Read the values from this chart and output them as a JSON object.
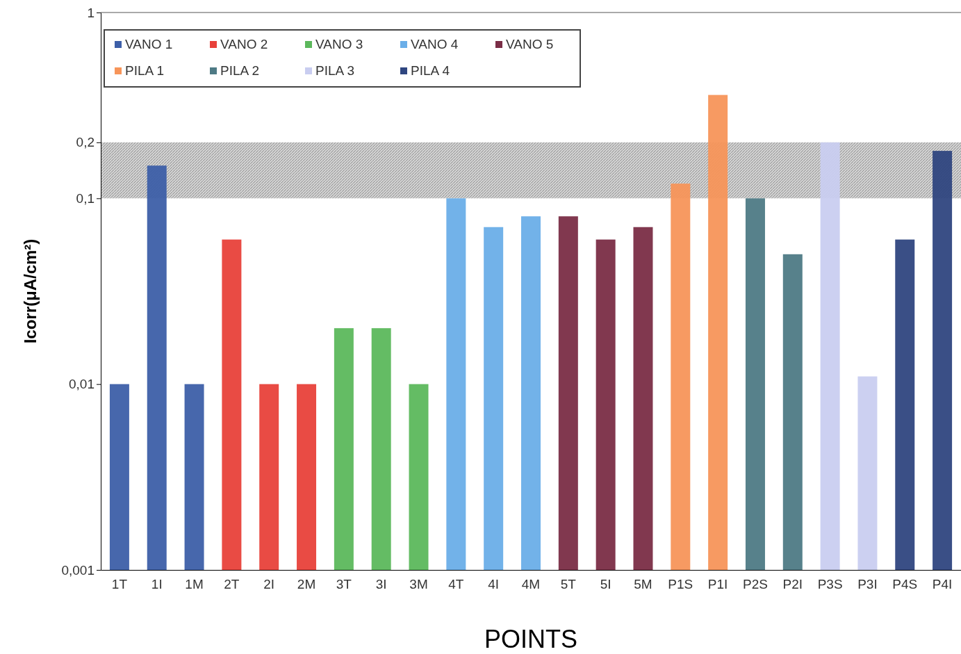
{
  "chart_data": {
    "type": "bar",
    "xlabel": "POINTS",
    "ylabel": "Icorr(μA/cm²)",
    "categories": [
      "1T",
      "1I",
      "1M",
      "2T",
      "2I",
      "2M",
      "3T",
      "3I",
      "3M",
      "4T",
      "4I",
      "4M",
      "5T",
      "5I",
      "5M",
      "P1S",
      "P1I",
      "P2S",
      "P2I",
      "P3S",
      "P3I",
      "P4S",
      "P4I"
    ],
    "series": [
      {
        "name": "VANO 1",
        "color": "#3d5fa8",
        "values": [
          0.01,
          0.15,
          0.01,
          null,
          null,
          null,
          null,
          null,
          null,
          null,
          null,
          null,
          null,
          null,
          null,
          null,
          null,
          null,
          null,
          null,
          null,
          null,
          null
        ]
      },
      {
        "name": "VANO 2",
        "color": "#e8413a",
        "values": [
          null,
          null,
          null,
          0.06,
          0.01,
          0.01,
          null,
          null,
          null,
          null,
          null,
          null,
          null,
          null,
          null,
          null,
          null,
          null,
          null,
          null,
          null,
          null,
          null
        ]
      },
      {
        "name": "VANO 3",
        "color": "#5cb85c",
        "values": [
          null,
          null,
          null,
          null,
          null,
          null,
          0.02,
          0.02,
          0.01,
          null,
          null,
          null,
          null,
          null,
          null,
          null,
          null,
          null,
          null,
          null,
          null,
          null,
          null
        ]
      },
      {
        "name": "VANO 4",
        "color": "#6aaee8",
        "values": [
          null,
          null,
          null,
          null,
          null,
          null,
          null,
          null,
          null,
          0.1,
          0.07,
          0.08,
          null,
          null,
          null,
          null,
          null,
          null,
          null,
          null,
          null,
          null,
          null
        ]
      },
      {
        "name": "VANO 5",
        "color": "#7a2d46",
        "values": [
          null,
          null,
          null,
          null,
          null,
          null,
          null,
          null,
          null,
          null,
          null,
          null,
          0.08,
          0.06,
          0.07,
          null,
          null,
          null,
          null,
          null,
          null,
          null,
          null
        ]
      },
      {
        "name": "PILA 1",
        "color": "#f7955a",
        "values": [
          null,
          null,
          null,
          null,
          null,
          null,
          null,
          null,
          null,
          null,
          null,
          null,
          null,
          null,
          null,
          0.12,
          0.36,
          null,
          null,
          null,
          null,
          null,
          null
        ]
      },
      {
        "name": "PILA 2",
        "color": "#4e7a85",
        "values": [
          null,
          null,
          null,
          null,
          null,
          null,
          null,
          null,
          null,
          null,
          null,
          null,
          null,
          null,
          null,
          null,
          null,
          0.1,
          0.05,
          null,
          null,
          null,
          null
        ]
      },
      {
        "name": "PILA 3",
        "color": "#c9cdf0",
        "values": [
          null,
          null,
          null,
          null,
          null,
          null,
          null,
          null,
          null,
          null,
          null,
          null,
          null,
          null,
          null,
          null,
          null,
          null,
          null,
          0.2,
          0.011,
          null,
          null
        ]
      },
      {
        "name": "PILA 4",
        "color": "#2f4680",
        "values": [
          null,
          null,
          null,
          null,
          null,
          null,
          null,
          null,
          null,
          null,
          null,
          null,
          null,
          null,
          null,
          null,
          null,
          null,
          null,
          null,
          null,
          0.06,
          0.18
        ]
      }
    ],
    "ylim": [
      0.001,
      1
    ],
    "yticks": [
      {
        "value": 0.001,
        "label": "0,001"
      },
      {
        "value": 0.01,
        "label": "0,01"
      },
      {
        "value": 0.1,
        "label": "0,1"
      },
      {
        "value": 0.2,
        "label": "0,2"
      },
      1
    ],
    "log": true,
    "grid": false,
    "legend": "top left",
    "bands": [
      {
        "axis": "y",
        "from": 0.1,
        "to": 0.2,
        "color": "#9a9a9a"
      }
    ]
  }
}
